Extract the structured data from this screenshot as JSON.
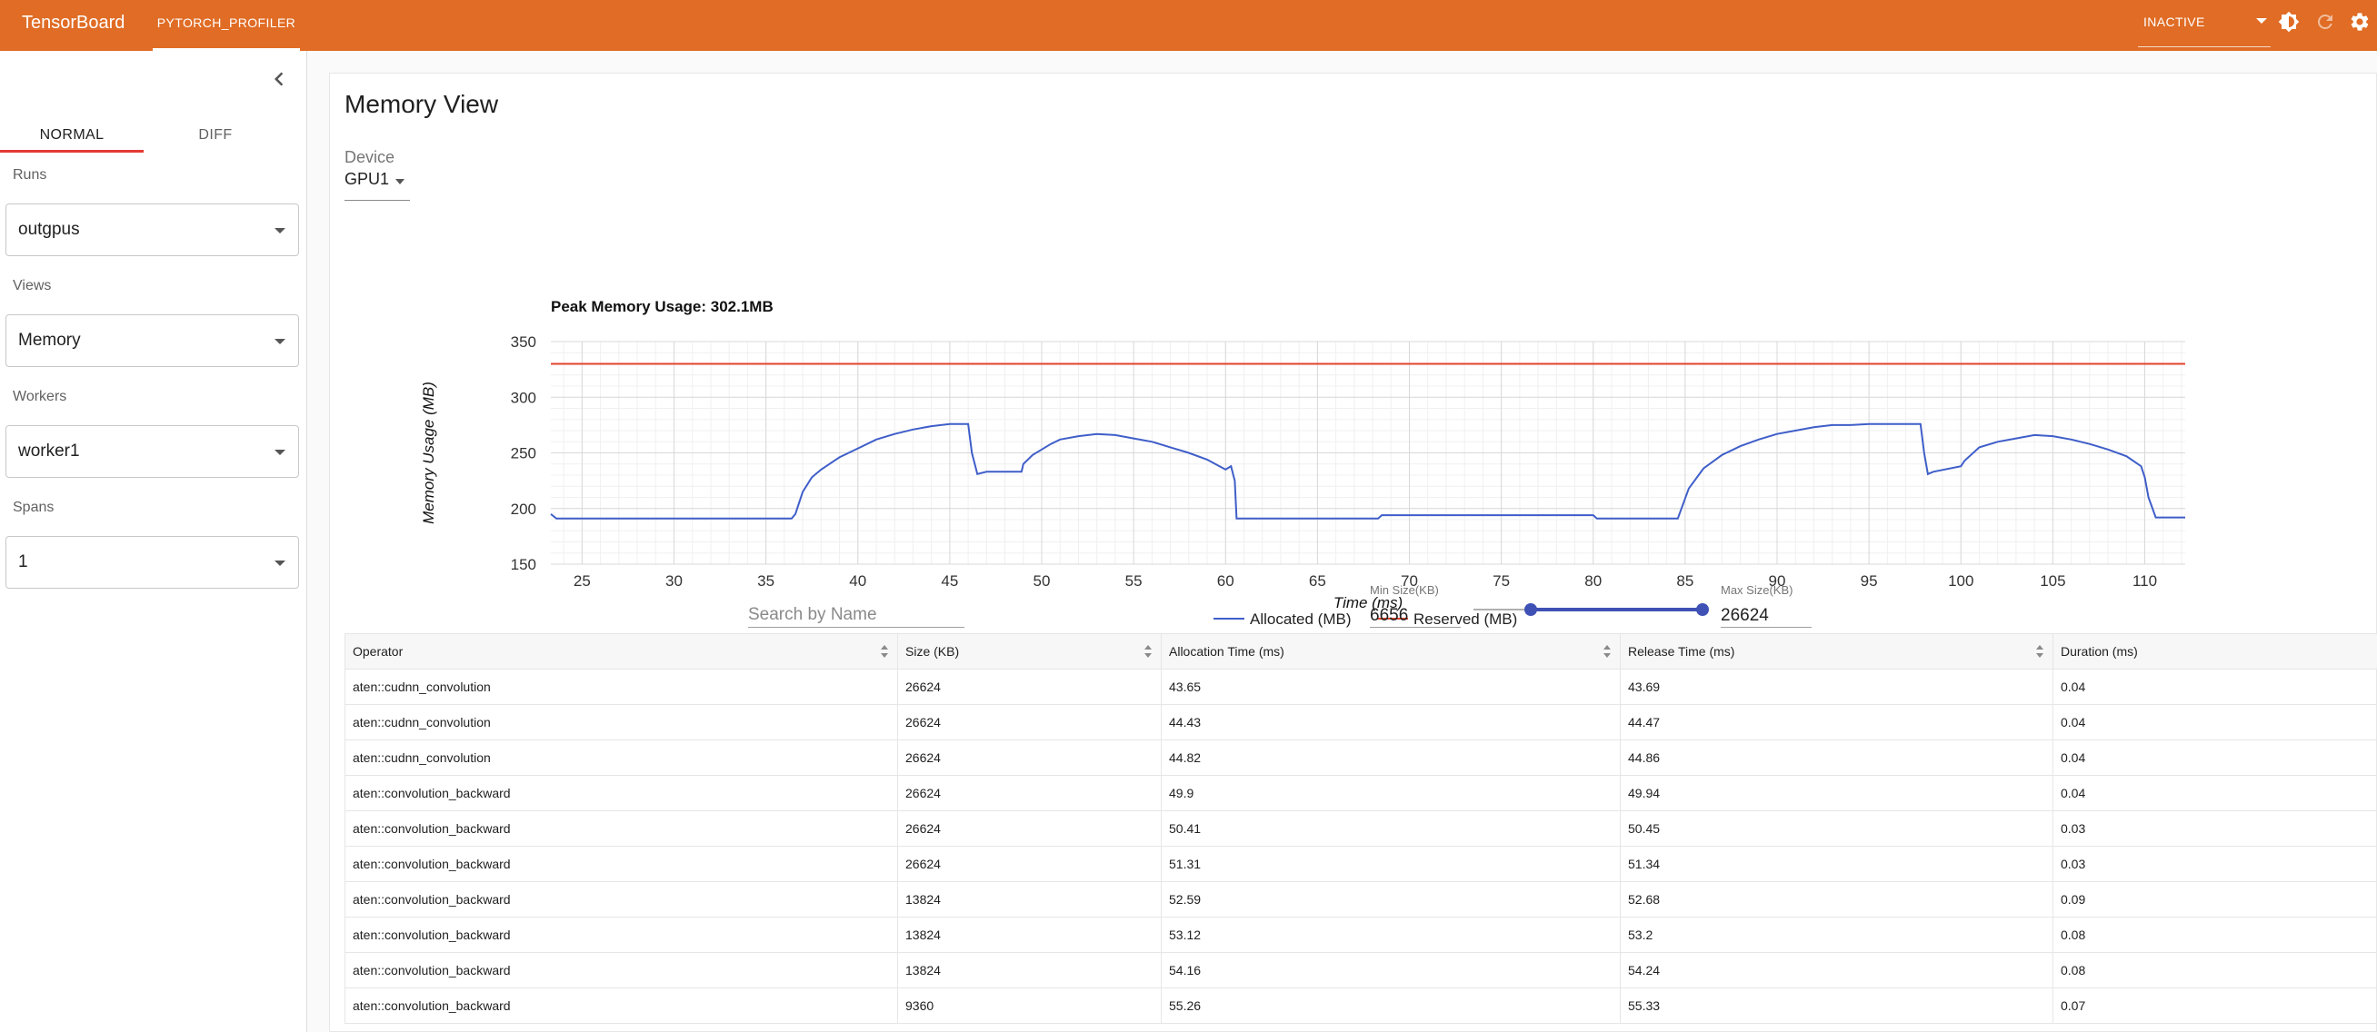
{
  "topbar": {
    "brand": "TensorBoard",
    "plugin_tab": "PYTORCH_PROFILER",
    "status_select": "INACTIVE",
    "icons": [
      "theme-toggle-icon",
      "refresh-icon",
      "settings-icon"
    ],
    "color": "#e06c25"
  },
  "sidebar": {
    "tabs": [
      "NORMAL",
      "DIFF"
    ],
    "active_tab": "NORMAL",
    "runs_label": "Runs",
    "runs_value": "outgpus",
    "views_label": "Views",
    "views_value": "Memory",
    "workers_label": "Workers",
    "workers_value": "worker1",
    "spans_label": "Spans",
    "spans_value": "1"
  },
  "main": {
    "title": "Memory View",
    "device_label": "Device",
    "device_value": "GPU1"
  },
  "chart_data": {
    "type": "line",
    "title": "Peak Memory Usage: 302.1MB",
    "xlabel": "Time (ms)",
    "ylabel": "Memory Usage (MB)",
    "xlim": [
      23.3,
      112.2
    ],
    "ylim": [
      150,
      350
    ],
    "xticks": [
      25,
      30,
      35,
      40,
      45,
      50,
      55,
      60,
      65,
      70,
      75,
      80,
      85,
      90,
      95,
      100,
      105,
      110
    ],
    "yticks": [
      150,
      200,
      250,
      300,
      350
    ],
    "grid": true,
    "legend_position": "bottom",
    "series": [
      {
        "name": "Allocated (MB)",
        "color": "#3f5ec9",
        "x": [
          23.3,
          23.6,
          36.4,
          36.6,
          37.0,
          37.5,
          38.0,
          39.0,
          40.0,
          41.0,
          42.0,
          43.0,
          44.0,
          45.0,
          46.0,
          46.2,
          46.5,
          47.0,
          48.9,
          49.0,
          49.5,
          50.5,
          51.0,
          52.0,
          53.0,
          54.0,
          55.0,
          56.0,
          57.0,
          58.0,
          59.0,
          60.0,
          60.3,
          60.5,
          60.6,
          61.0,
          68.3,
          68.5,
          80.0,
          80.2,
          84.6,
          84.8,
          85.2,
          86.0,
          87.0,
          88.0,
          89.0,
          90.0,
          91.0,
          92.0,
          93.0,
          94.0,
          95.0,
          96.0,
          97.0,
          97.8,
          98.0,
          98.2,
          98.5,
          100.0,
          100.2,
          101.0,
          102.0,
          103.0,
          104.0,
          105.0,
          106.0,
          107.0,
          108.0,
          109.0,
          109.8,
          110.0,
          110.2,
          110.6,
          112.2
        ],
        "y": [
          195,
          191,
          191,
          195,
          215,
          228,
          235,
          246,
          254,
          262,
          267,
          271,
          274,
          276,
          276,
          250,
          231,
          233,
          233,
          240,
          248,
          258,
          262,
          265,
          267,
          266,
          263,
          260,
          255,
          250,
          244,
          235,
          238,
          225,
          191,
          191,
          191,
          194,
          194,
          191,
          191,
          200,
          218,
          236,
          248,
          256,
          262,
          267,
          270,
          273,
          275,
          275,
          276,
          276,
          276,
          276,
          250,
          231,
          233,
          238,
          243,
          255,
          260,
          263,
          266,
          265,
          262,
          258,
          253,
          247,
          238,
          228,
          210,
          192,
          192
        ]
      },
      {
        "name": "Reserved (MB)",
        "color": "#e2432c",
        "x": [
          23.3,
          112.2
        ],
        "y": [
          330,
          330
        ]
      }
    ]
  },
  "filters": {
    "search_placeholder": "Search by Name",
    "min_label": "Min Size(KB)",
    "min_value": "6656",
    "max_label": "Max Size(KB)",
    "max_value": "26624",
    "slider_min": 6656,
    "slider_max": 26624,
    "slider_range_min": 0,
    "slider_range_max": 26624
  },
  "table": {
    "columns": [
      "Operator",
      "Size (KB)",
      "Allocation Time (ms)",
      "Release Time (ms)",
      "Duration (ms)"
    ],
    "rows": [
      [
        "aten::cudnn_convolution",
        "26624",
        "43.65",
        "43.69",
        "0.04"
      ],
      [
        "aten::cudnn_convolution",
        "26624",
        "44.43",
        "44.47",
        "0.04"
      ],
      [
        "aten::cudnn_convolution",
        "26624",
        "44.82",
        "44.86",
        "0.04"
      ],
      [
        "aten::convolution_backward",
        "26624",
        "49.9",
        "49.94",
        "0.04"
      ],
      [
        "aten::convolution_backward",
        "26624",
        "50.41",
        "50.45",
        "0.03"
      ],
      [
        "aten::convolution_backward",
        "26624",
        "51.31",
        "51.34",
        "0.03"
      ],
      [
        "aten::convolution_backward",
        "13824",
        "52.59",
        "52.68",
        "0.09"
      ],
      [
        "aten::convolution_backward",
        "13824",
        "53.12",
        "53.2",
        "0.08"
      ],
      [
        "aten::convolution_backward",
        "13824",
        "54.16",
        "54.24",
        "0.08"
      ],
      [
        "aten::convolution_backward",
        "9360",
        "55.26",
        "55.33",
        "0.07"
      ]
    ]
  }
}
